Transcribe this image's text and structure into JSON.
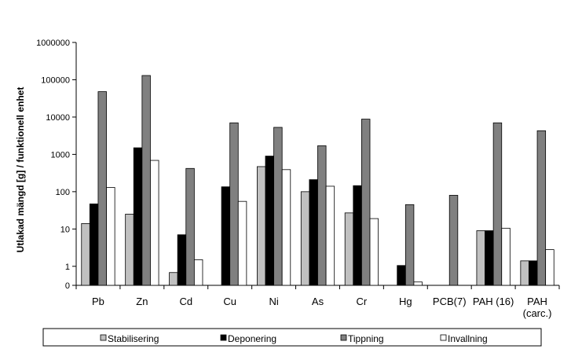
{
  "chart_data": {
    "type": "bar",
    "scale": "log",
    "ylabel": "Utlakad mängd [g] / funktionell enhet",
    "ylim": [
      0,
      1000000
    ],
    "y_ticks": [
      "0",
      "1",
      "10",
      "100",
      "1000",
      "10000",
      "100000",
      "1000000"
    ],
    "categories": [
      [
        "Pb"
      ],
      [
        "Zn"
      ],
      [
        "Cd"
      ],
      [
        "Cu"
      ],
      [
        "Ni"
      ],
      [
        "As"
      ],
      [
        "Cr"
      ],
      [
        "Hg"
      ],
      [
        "PCB(7)"
      ],
      [
        "PAH (16)"
      ],
      [
        "PAH",
        "(carc.)"
      ]
    ],
    "legend_position": "bottom",
    "series": [
      {
        "name": "Stabilisering",
        "color": "#c0c0c0",
        "values": [
          14,
          25,
          0.68,
          null,
          470,
          100,
          27,
          0.26,
          0.14,
          9,
          1.4
        ]
      },
      {
        "name": "Deponering",
        "color": "#000000",
        "values": [
          47,
          1500,
          7,
          135,
          900,
          210,
          145,
          1.05,
          0.14,
          9,
          1.4
        ]
      },
      {
        "name": "Tippning",
        "color": "#808080",
        "values": [
          48000,
          130000,
          420,
          7000,
          5300,
          1700,
          8800,
          45,
          80,
          7000,
          4300
        ]
      },
      {
        "name": "Invallning",
        "color": "#ffffff",
        "values": [
          130,
          690,
          1.5,
          55,
          390,
          140,
          19,
          0.38,
          0.27,
          10.5,
          2.8
        ]
      }
    ]
  }
}
